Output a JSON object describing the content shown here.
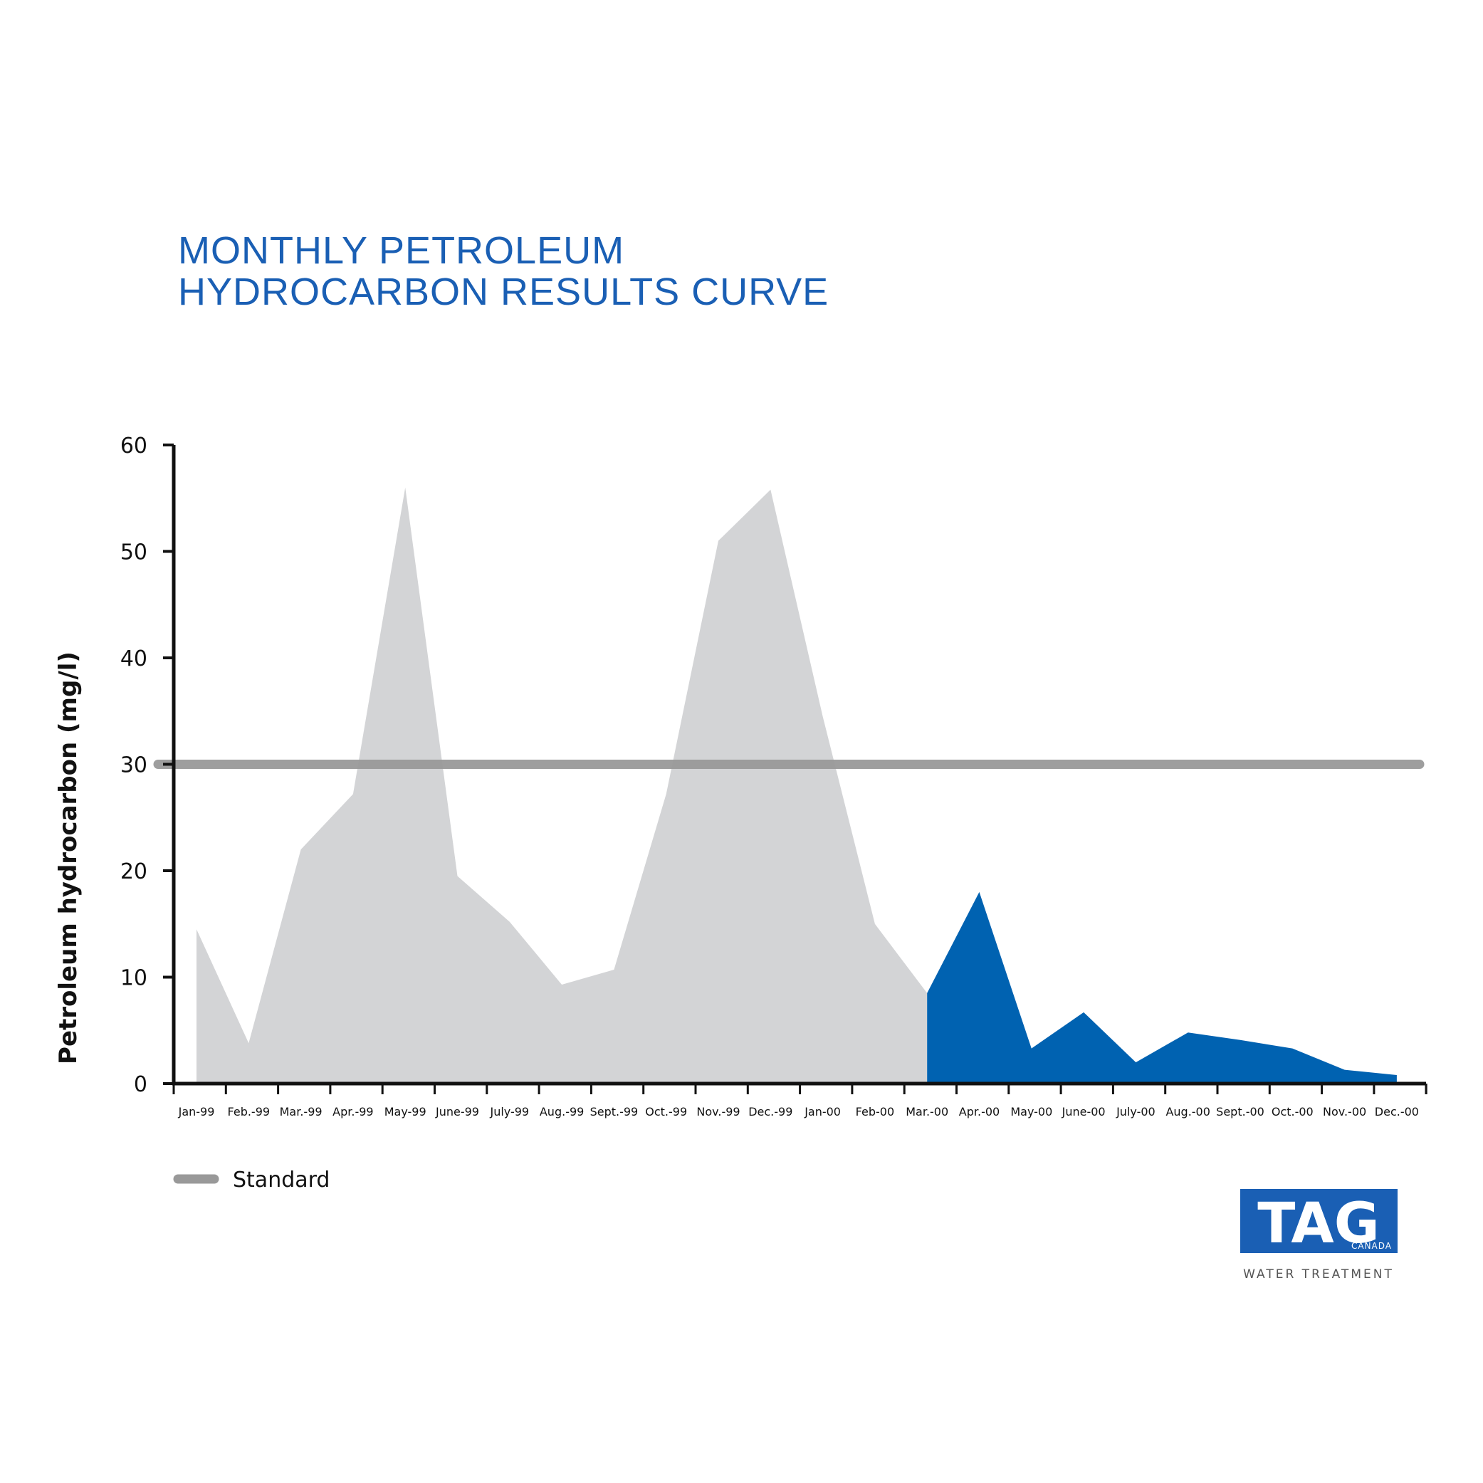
{
  "chart_data": {
    "type": "area",
    "title_lines": [
      "MONTHLY PETROLEUM",
      "HYDROCARBON RESULTS CURVE"
    ],
    "xlabel": "",
    "ylabel": "Petroleum hydrocarbon (mg/l)",
    "ylim": [
      0,
      60
    ],
    "yticks": [
      "0",
      "10",
      "20",
      "30",
      "40",
      "50",
      "60"
    ],
    "categories": [
      "Jan-99",
      "Feb.-99",
      "Mar.-99",
      "Apr.-99",
      "May-99",
      "June-99",
      "July-99",
      "Aug.-99",
      "Sept.-99",
      "Oct.-99",
      "Nov.-99",
      "Dec.-99",
      "Jan-00",
      "Feb-00",
      "Mar.-00",
      "Apr.-00",
      "May-00",
      "June-00",
      "July-00",
      "Aug.-00",
      "Sept.-00",
      "Oct.-00",
      "Nov.-00",
      "Dec.-00"
    ],
    "series": [
      {
        "color": "#d3d4d6",
        "values": [
          14.5,
          3.8,
          22,
          27.2,
          56,
          19.5,
          15.2,
          9.3,
          10.7,
          27.2,
          51,
          55.8,
          34.5,
          15.0,
          8.5,
          null,
          null,
          null,
          null,
          null,
          null,
          null,
          null,
          null
        ]
      },
      {
        "color": "#0062b1",
        "values": [
          null,
          null,
          null,
          null,
          null,
          null,
          null,
          null,
          null,
          null,
          null,
          null,
          null,
          null,
          8.5,
          18,
          3.3,
          6.7,
          2.0,
          4.8,
          4.1,
          3.3,
          1.3,
          0.8
        ]
      }
    ],
    "reference_line": {
      "name": "Standard",
      "value": 30,
      "color": "#999999"
    },
    "grid": false,
    "legend": {
      "position": "bottom-left",
      "entries": [
        "Standard"
      ]
    }
  },
  "logo": {
    "main": "TAG",
    "sub": "CANADA",
    "caption": "WATER TREATMENT",
    "color": "#1a5fb4"
  }
}
